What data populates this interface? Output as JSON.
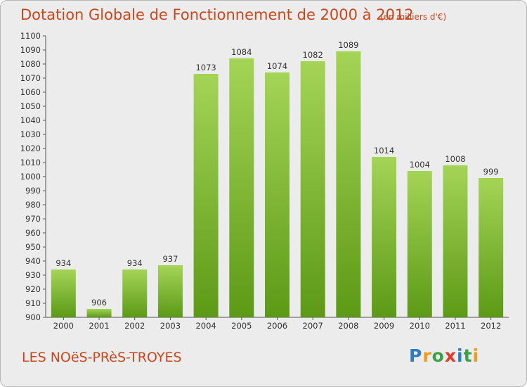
{
  "header": {
    "title": "Dotation Globale de Fonctionnement de 2000 à 2012",
    "subtitle": "(en milliers d'€)"
  },
  "footer": {
    "place": "LES NOëS-PRèS-TROYES",
    "logo": "Proxiti",
    "logo_colors": [
      "#2e7bc0",
      "#f39a1b",
      "#3aa04a",
      "#e23a2a",
      "#2e7bc0",
      "#3aa04a",
      "#f39a1b"
    ]
  },
  "colors": {
    "title": "#c8481e",
    "bar_light": "#a4d456",
    "bar_dark": "#5c9a16",
    "background": "#ececec"
  },
  "chart_data": {
    "type": "bar",
    "categories": [
      "2000",
      "2001",
      "2002",
      "2003",
      "2004",
      "2005",
      "2006",
      "2007",
      "2008",
      "2009",
      "2010",
      "2011",
      "2012"
    ],
    "values": [
      934,
      906,
      934,
      937,
      1073,
      1084,
      1074,
      1082,
      1089,
      1014,
      1004,
      1008,
      999
    ],
    "data_labels": [
      "934",
      "906",
      "934",
      "937",
      "1073",
      "1084",
      "1074",
      "1082",
      "1089",
      "1014",
      "1004",
      "1008",
      "999"
    ],
    "ylim": [
      900,
      1100
    ],
    "ytick_step": 10,
    "grid": false,
    "legend": "none"
  }
}
